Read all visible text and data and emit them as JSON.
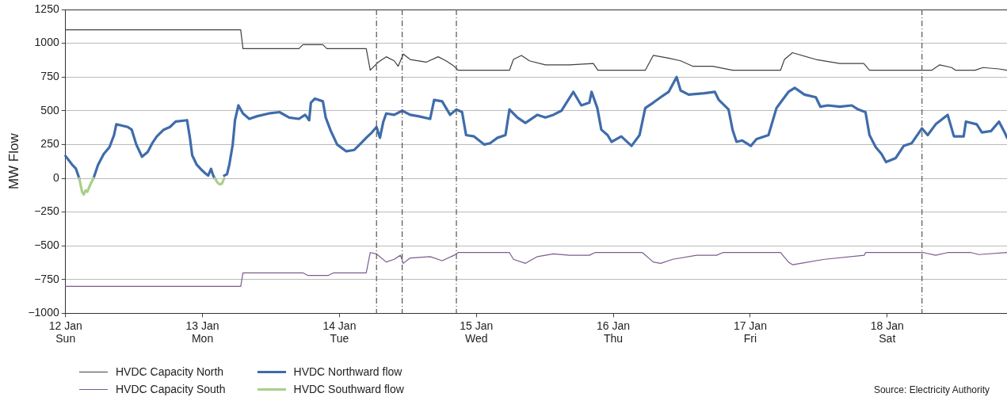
{
  "chart_data": {
    "type": "line",
    "ylabel": "MW Flow",
    "xlim": [
      "--01-12T00:00",
      "--01-18T21:00"
    ],
    "ylim": [
      -1000,
      1250
    ],
    "xticks": [
      {
        "value": "--01-12",
        "label": "12 Jan\nSun"
      },
      {
        "value": "--01-13",
        "label": "13 Jan\nMon"
      },
      {
        "value": "--01-14",
        "label": "14 Jan\nTue"
      },
      {
        "value": "--01-15",
        "label": "15 Jan\nWed"
      },
      {
        "value": "--01-16",
        "label": "16 Jan\nThu"
      },
      {
        "value": "--01-17",
        "label": "17 Jan\nFri"
      },
      {
        "value": "--01-18",
        "label": "18 Jan\nSat"
      }
    ],
    "yticks": [
      {
        "value": -1000,
        "label": "−1000"
      },
      {
        "value": -750,
        "label": "−750"
      },
      {
        "value": -500,
        "label": "−500"
      },
      {
        "value": -250,
        "label": "−250"
      },
      0,
      250,
      500,
      750,
      1000,
      1250
    ],
    "grid": "y",
    "legend": "bottom",
    "marker": "none",
    "series": [
      {
        "name": "HVDC Capacity North",
        "color": "#404040",
        "x": [
          "--01-12T00:00",
          "--01-13T06:42",
          "--01-13T07:06",
          "--01-13T16:54",
          "--01-13T17:36",
          "--01-13T21:06",
          "--01-13T21:48",
          "--01-14T04:42",
          "--01-14T05:24",
          "--01-14T06:48",
          "--01-14T08:12",
          "--01-14T09:36",
          "--01-14T10:18",
          "--01-14T11:12",
          "--01-14T12:24",
          "--01-14T15:12",
          "--01-14T17:18",
          "--01-14T18:42",
          "--01-14T20:06",
          "--01-14T20:48",
          "--01-15T05:48",
          "--01-15T06:30",
          "--01-15T07:54",
          "--01-15T09:18",
          "--01-15T12:06",
          "--01-15T16:18",
          "--01-15T20:30",
          "--01-15T21:18",
          "--01-16T05:36",
          "--01-16T07:00",
          "--01-16T09:42",
          "--01-16T11:48",
          "--01-16T13:54",
          "--01-16T17:24",
          "--01-16T20:54",
          "--01-17T05:18",
          "--01-17T06:00",
          "--01-17T07:24",
          "--01-17T11:30",
          "--01-17T15:42",
          "--01-17T19:54",
          "--01-17T20:54",
          "--01-18T07:48",
          "--01-18T09:12",
          "--01-18T11:18",
          "--01-18T12:00",
          "--01-18T15:24",
          "--01-18T16:48",
          "--01-18T19:36",
          "--01-18T21:00"
        ],
        "values": [
          1100,
          1100,
          960,
          960,
          990,
          990,
          960,
          960,
          800,
          860,
          900,
          870,
          830,
          920,
          880,
          860,
          900,
          870,
          830,
          800,
          800,
          880,
          910,
          870,
          840,
          840,
          850,
          800,
          800,
          910,
          890,
          870,
          830,
          830,
          800,
          800,
          880,
          930,
          880,
          850,
          850,
          800,
          800,
          840,
          820,
          800,
          800,
          820,
          810,
          800
        ]
      },
      {
        "name": "HVDC Capacity South",
        "color": "#7b5c8e",
        "x": [
          "--01-12T00:00",
          "--01-13T06:42",
          "--01-13T07:06",
          "--01-13T17:36",
          "--01-13T18:30",
          "--01-13T22:00",
          "--01-13T23:00",
          "--01-14T04:42",
          "--01-14T05:24",
          "--01-14T06:30",
          "--01-14T08:12",
          "--01-14T09:36",
          "--01-14T10:42",
          "--01-14T11:12",
          "--01-14T12:24",
          "--01-14T15:54",
          "--01-14T18:00",
          "--01-14T20:06",
          "--01-14T20:48",
          "--01-15T05:48",
          "--01-15T06:30",
          "--01-15T08:36",
          "--01-15T10:42",
          "--01-15T13:30",
          "--01-15T16:18",
          "--01-15T19:48",
          "--01-15T20:48",
          "--01-16T05:06",
          "--01-16T07:00",
          "--01-16T08:18",
          "--01-16T10:24",
          "--01-16T14:36",
          "--01-16T18:06",
          "--01-16T19:12",
          "--01-17T05:18",
          "--01-17T06:42",
          "--01-17T07:24",
          "--01-17T13:00",
          "--01-17T20:00",
          "--01-17T20:12",
          "--01-18T06:24",
          "--01-18T08:30",
          "--01-18T10:36",
          "--01-18T14:42",
          "--01-18T16:06",
          "--01-18T21:00"
        ],
        "values": [
          -800,
          -800,
          -700,
          -700,
          -720,
          -720,
          -700,
          -700,
          -550,
          -560,
          -620,
          -600,
          -570,
          -630,
          -590,
          -580,
          -610,
          -570,
          -550,
          -550,
          -600,
          -630,
          -580,
          -560,
          -570,
          -570,
          -550,
          -550,
          -620,
          -630,
          -600,
          -570,
          -570,
          -550,
          -550,
          -620,
          -640,
          -600,
          -570,
          -550,
          -550,
          -570,
          -550,
          -550,
          -565,
          -550
        ]
      },
      {
        "name": "HVDC Northward flow",
        "color": "#3f6caa",
        "x": [
          "--01-12T00:00",
          "--01-12T01:06",
          "--01-12T01:48",
          "--01-12T02:24",
          "--01-12T03:42",
          "--01-12T04:54",
          "--01-12T05:42",
          "--01-12T06:42",
          "--01-12T07:42",
          "--01-12T08:30",
          "--01-12T08:54",
          "--01-12T09:54",
          "--01-12T10:54",
          "--01-12T11:36",
          "--01-12T12:24",
          "--01-12T13:24",
          "--01-12T14:24",
          "--01-12T15:12",
          "--01-12T16:00",
          "--01-12T17:12",
          "--01-12T18:18",
          "--01-12T19:18",
          "--01-12T21:18",
          "--01-12T21:48",
          "--01-12T22:12",
          "--01-12T23:00",
          "--01-12T23:54",
          "--01-13T00:24",
          "--01-13T01:00",
          "--01-13T01:30",
          "--01-13T01:48",
          "--01-13T02:00",
          "--01-13T02:12",
          "--01-13T02:54",
          "--01-13T03:48",
          "--01-13T04:18",
          "--01-13T04:42",
          "--01-13T05:18",
          "--01-13T05:42",
          "--01-13T06:18",
          "--01-13T07:06",
          "--01-13T08:12",
          "--01-13T09:36",
          "--01-13T11:36",
          "--01-13T13:30",
          "--01-13T15:12",
          "--01-13T16:54",
          "--01-13T18:00",
          "--01-13T18:42",
          "--01-13T19:00",
          "--01-13T19:42",
          "--01-13T21:06",
          "--01-13T21:36",
          "--01-13T22:30",
          "--01-13T23:36",
          "--01-14T01:12",
          "--01-14T02:36",
          "--01-14T03:48",
          "--01-14T04:42",
          "--01-14T05:42",
          "--01-14T06:30",
          "--01-14T07:06",
          "--01-14T07:42",
          "--01-14T08:12",
          "--01-14T09:36",
          "--01-14T11:00",
          "--01-14T12:24",
          "--01-14T13:48",
          "--01-14T15:54",
          "--01-14T16:36",
          "--01-14T18:00",
          "--01-14T19:24",
          "--01-14T20:30",
          "--01-14T21:30",
          "--01-14T22:12",
          "--01-14T23:36",
          "--01-15T01:24",
          "--01-15T02:24",
          "--01-15T03:42",
          "--01-15T05:06",
          "--01-15T05:48",
          "--01-15T07:12",
          "--01-15T08:36",
          "--01-15T10:42",
          "--01-15T12:06",
          "--01-15T13:30",
          "--01-15T14:54",
          "--01-15T17:00",
          "--01-15T18:24",
          "--01-15T19:48",
          "--01-15T20:12",
          "--01-15T21:12",
          "--01-15T21:54",
          "--01-15T23:00",
          "--01-15T23:42",
          "--01-16T01:24",
          "--01-16T03:12",
          "--01-16T04:36",
          "--01-16T05:36",
          "--01-16T07:00",
          "--01-16T08:18",
          "--01-16T09:42",
          "--01-16T11:06",
          "--01-16T11:48",
          "--01-16T13:12",
          "--01-16T16:00",
          "--01-16T17:48",
          "--01-16T18:30",
          "--01-16T20:12",
          "--01-16T20:54",
          "--01-16T21:36",
          "--01-16T22:36",
          "--01-17T00:06",
          "--01-17T01:06",
          "--01-17T03:12",
          "--01-17T04:36",
          "--01-17T05:18",
          "--01-17T06:42",
          "--01-17T07:48",
          "--01-17T09:30",
          "--01-17T11:30",
          "--01-17T12:18",
          "--01-17T13:36",
          "--01-17T15:42",
          "--01-17T17:48",
          "--01-17T18:54",
          "--01-17T20:12",
          "--01-17T20:54",
          "--01-17T22:00",
          "--01-17T23:00",
          "--01-17T23:48",
          "--01-18T01:30",
          "--01-18T02:54",
          "--01-18T04:18",
          "--01-18T06:06",
          "--01-18T07:06",
          "--01-18T08:30",
          "--01-18T10:36",
          "--01-18T11:42",
          "--01-18T13:24",
          "--01-18T13:48",
          "--01-18T15:42",
          "--01-18T16:36",
          "--01-18T18:12",
          "--01-18T19:36",
          "--01-18T20:42",
          "--01-18T21:00"
        ],
        "values": [
          165,
          104,
          73,
          0,
          null,
          0,
          100,
          180,
          230,
          320,
          400,
          390,
          380,
          360,
          250,
          160,
          195,
          260,
          310,
          360,
          380,
          420,
          430,
          300,
          170,
          100,
          60,
          40,
          20,
          70,
          30,
          10,
          0,
          null,
          20,
          30,
          100,
          250,
          430,
          540,
          480,
          440,
          460,
          480,
          490,
          450,
          440,
          470,
          430,
          560,
          590,
          570,
          450,
          350,
          250,
          200,
          210,
          260,
          300,
          340,
          380,
          300,
          420,
          480,
          470,
          500,
          470,
          460,
          440,
          580,
          570,
          470,
          510,
          490,
          320,
          310,
          250,
          260,
          300,
          320,
          510,
          450,
          410,
          470,
          450,
          470,
          500,
          640,
          540,
          560,
          640,
          520,
          360,
          320,
          270,
          310,
          240,
          320,
          520,
          560,
          600,
          640,
          750,
          650,
          620,
          630,
          640,
          580,
          510,
          360,
          270,
          280,
          240,
          290,
          320,
          520,
          560,
          640,
          670,
          620,
          600,
          530,
          540,
          530,
          540,
          510,
          490,
          320,
          230,
          180,
          120,
          150,
          240,
          260,
          370,
          320,
          400,
          470,
          310,
          310,
          420,
          400,
          340,
          350,
          420,
          330,
          300
        ]
      },
      {
        "name": "HVDC Southward flow",
        "color": "#a9cf8a",
        "x": [
          "--01-12T02:24",
          "--01-12T02:42",
          "--01-12T02:54",
          "--01-12T03:12",
          "--01-12T03:30",
          "--01-12T03:48",
          "--01-12T04:18",
          "--01-12T04:54",
          "--01-12T05:12",
          "--01-13T02:12",
          "--01-13T02:36",
          "--01-13T03:00",
          "--01-13T03:24",
          "--01-13T03:48"
        ],
        "values": [
          0,
          -60,
          -100,
          -120,
          -90,
          -100,
          -50,
          0,
          null,
          0,
          -30,
          -45,
          -40,
          0
        ]
      }
    ],
    "ref_lines": [
      {
        "axis": "x",
        "value": "--01-14T06:30",
        "color": "#555555",
        "line_style": "dashed"
      },
      {
        "axis": "x",
        "value": "--01-14T11:00",
        "color": "#555555",
        "line_style": "dashed"
      },
      {
        "axis": "x",
        "value": "--01-14T20:30",
        "color": "#555555",
        "line_style": "dashed"
      },
      {
        "axis": "x",
        "value": "--01-18T06:06",
        "color": "#555555",
        "line_style": "dashed"
      }
    ],
    "annotations": [
      "Source: Electricity Authority"
    ]
  }
}
